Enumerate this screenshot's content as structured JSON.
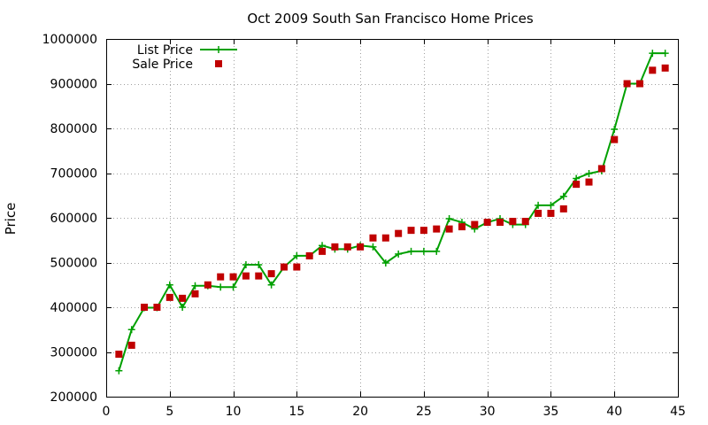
{
  "chart_data": {
    "type": "line",
    "title": "Oct 2009 South San Francisco Home Prices",
    "xlabel": "",
    "ylabel": "Price",
    "xlim": [
      0,
      45
    ],
    "ylim": [
      200000,
      1000000
    ],
    "x_ticks": [
      "0",
      "5",
      "10",
      "15",
      "20",
      "25",
      "30",
      "35",
      "40",
      "45"
    ],
    "y_ticks": [
      "200000",
      "300000",
      "400000",
      "500000",
      "600000",
      "700000",
      "800000",
      "900000",
      "1000000"
    ],
    "grid": true,
    "legend_position": "top-left",
    "series": [
      {
        "name": "List Price",
        "style": "linespoints",
        "color": "#00a000",
        "x": [
          1,
          2,
          3,
          4,
          5,
          6,
          7,
          8,
          9,
          10,
          11,
          12,
          13,
          14,
          15,
          16,
          17,
          18,
          19,
          20,
          21,
          22,
          23,
          24,
          25,
          26,
          27,
          28,
          29,
          30,
          31,
          32,
          33,
          34,
          35,
          36,
          37,
          38,
          39,
          40,
          41,
          42,
          43,
          44
        ],
        "values": [
          258000,
          350000,
          399000,
          399000,
          450000,
          400000,
          448000,
          448000,
          445000,
          445000,
          495000,
          495000,
          450000,
          490000,
          515000,
          515000,
          538000,
          530000,
          530000,
          538000,
          535000,
          499000,
          519000,
          525000,
          525000,
          525000,
          598000,
          590000,
          575000,
          590000,
          598000,
          585000,
          585000,
          628000,
          628000,
          648000,
          688000,
          699000,
          705000,
          798000,
          900000,
          900000,
          968000,
          968000
        ]
      },
      {
        "name": "Sale Price",
        "style": "points",
        "color": "#c00000",
        "x": [
          1,
          2,
          3,
          4,
          5,
          6,
          7,
          8,
          9,
          10,
          11,
          12,
          13,
          14,
          15,
          16,
          17,
          18,
          19,
          20,
          21,
          22,
          23,
          24,
          25,
          26,
          27,
          28,
          29,
          30,
          31,
          32,
          33,
          34,
          35,
          36,
          37,
          38,
          39,
          40,
          41,
          42,
          43,
          44
        ],
        "values": [
          295000,
          315000,
          400000,
          400000,
          422000,
          420000,
          430000,
          450000,
          468000,
          468000,
          470000,
          470000,
          475000,
          490000,
          490000,
          515000,
          525000,
          535000,
          535000,
          535000,
          555000,
          555000,
          565000,
          572000,
          572000,
          575000,
          575000,
          580000,
          585000,
          590000,
          590000,
          592000,
          592000,
          610000,
          610000,
          620000,
          675000,
          680000,
          710000,
          775000,
          900000,
          900000,
          930000,
          935000
        ]
      }
    ]
  }
}
